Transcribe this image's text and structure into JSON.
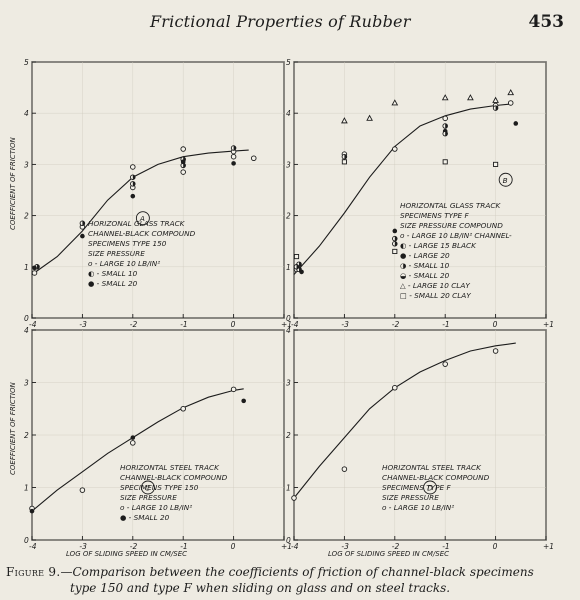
{
  "header": {
    "running_title": "Frictional Properties of Rubber",
    "page_number": "453"
  },
  "y_axis_label": "COEFFICIENT OF FRICTION",
  "x_axis_label": "LOG OF SLIDING SPEED IN CM/SEC",
  "caption": {
    "lead": "Figure 9.",
    "line1": "—Comparison between the coefficients of friction of channel-black specimens",
    "line2": "type 150 and type F when sliding on glass and on steel tracks."
  },
  "chart_data": [
    {
      "type": "scatter",
      "panel": "A",
      "xlim": [
        -4,
        1
      ],
      "ylim": [
        0,
        5
      ],
      "x_ticks": [
        "-4",
        "-3",
        "-2",
        "-1",
        "0",
        "+1"
      ],
      "y_ticks": [
        "0",
        "1",
        "2",
        "3",
        "4",
        "5"
      ],
      "legend": [
        "HORIZONAL GLASS TRACK",
        "CHANNEL-BLACK COMPOUND",
        "SPECIMENS TYPE 150",
        "SIZE      PRESSURE",
        "o - LARGE    10 LB/IN²",
        "◐ - SMALL    10",
        "● - SMALL    20"
      ],
      "series": [
        {
          "name": "LARGE 10",
          "marker": "open",
          "points": [
            [
              -3.95,
              0.88
            ],
            [
              -3.0,
              1.78
            ],
            [
              -2.0,
              2.55
            ],
            [
              -2.0,
              2.95
            ],
            [
              -1.0,
              3.3
            ],
            [
              -1.0,
              2.85
            ],
            [
              0.0,
              3.25
            ],
            [
              0.0,
              3.15
            ],
            [
              0.4,
              3.12
            ]
          ]
        },
        {
          "name": "SMALL 10",
          "marker": "half",
          "points": [
            [
              -3.9,
              1.0
            ],
            [
              -3.0,
              1.85
            ],
            [
              -2.0,
              2.75
            ],
            [
              -2.0,
              2.62
            ],
            [
              -1.0,
              3.1
            ],
            [
              -1.0,
              2.98
            ],
            [
              0.0,
              3.32
            ]
          ]
        },
        {
          "name": "SMALL 20",
          "marker": "filled",
          "points": [
            [
              -3.95,
              0.98
            ],
            [
              -3.0,
              1.6
            ],
            [
              -2.0,
              2.38
            ],
            [
              -1.0,
              3.05
            ],
            [
              0.0,
              3.02
            ]
          ]
        }
      ],
      "curve": [
        [
          -4.0,
          0.85
        ],
        [
          -3.5,
          1.2
        ],
        [
          -3.0,
          1.7
        ],
        [
          -2.5,
          2.3
        ],
        [
          -2.0,
          2.75
        ],
        [
          -1.5,
          3.0
        ],
        [
          -1.0,
          3.15
        ],
        [
          -0.5,
          3.22
        ],
        [
          0.0,
          3.26
        ],
        [
          0.3,
          3.28
        ]
      ]
    },
    {
      "type": "scatter",
      "panel": "B",
      "xlim": [
        -4,
        1
      ],
      "ylim": [
        0,
        5
      ],
      "x_ticks": [
        "-4",
        "-3",
        "-2",
        "-1",
        "0",
        "+1"
      ],
      "y_ticks": [
        "0",
        "1",
        "2",
        "3",
        "4",
        "5"
      ],
      "legend": [
        "HORIZONTAL GLASS TRACK",
        "SPECIMENS TYPE F",
        "SIZE  PRESSURE  COMPOUND",
        "o - LARGE    10 LB/IN²   CHANNEL-",
        "◐ - LARGE    15          BLACK",
        "● - LARGE    20",
        "◑ - SMALL    10",
        "◒ - SMALL    20",
        "△ - LARGE    10          CLAY",
        "□ - SMALL    20          CLAY"
      ],
      "series": [
        {
          "name": "LARGE 10 CHANNEL-BLACK",
          "marker": "open",
          "points": [
            [
              -3.95,
              0.95
            ],
            [
              -3.0,
              3.2
            ],
            [
              -2.0,
              3.3
            ],
            [
              -1.0,
              3.9
            ],
            [
              0.0,
              4.15
            ],
            [
              0.3,
              4.2
            ]
          ]
        },
        {
          "name": "LARGE 15",
          "marker": "half",
          "points": [
            [
              -3.9,
              1.05
            ],
            [
              -3.0,
              3.15
            ],
            [
              -1.0,
              3.75
            ],
            [
              0.0,
              4.1
            ]
          ]
        },
        {
          "name": "LARGE 20",
          "marker": "filled",
          "points": [
            [
              -3.85,
              0.9
            ],
            [
              -3.0,
              3.05
            ],
            [
              -2.0,
              1.7
            ],
            [
              -1.0,
              3.65
            ],
            [
              0.4,
              3.8
            ]
          ]
        },
        {
          "name": "SMALL 10",
          "marker": "half",
          "points": [
            [
              -3.9,
              0.95
            ],
            [
              -2.0,
              1.45
            ],
            [
              -1.0,
              3.6
            ]
          ]
        },
        {
          "name": "SMALL 20",
          "marker": "half",
          "points": [
            [
              -3.95,
              1.0
            ],
            [
              -2.0,
              1.55
            ]
          ]
        },
        {
          "name": "LARGE 10 CLAY",
          "marker": "triangle",
          "points": [
            [
              -3.0,
              3.85
            ],
            [
              -2.5,
              3.9
            ],
            [
              -2.0,
              4.2
            ],
            [
              -1.0,
              4.3
            ],
            [
              -0.5,
              4.3
            ],
            [
              0.0,
              4.25
            ],
            [
              0.3,
              4.4
            ]
          ]
        },
        {
          "name": "SMALL 20 CLAY",
          "marker": "square",
          "points": [
            [
              -3.95,
              1.2
            ],
            [
              -3.0,
              3.05
            ],
            [
              -2.0,
              1.3
            ],
            [
              -1.0,
              3.05
            ],
            [
              0.0,
              3.0
            ]
          ]
        }
      ],
      "curve": [
        [
          -4.0,
          0.85
        ],
        [
          -3.5,
          1.4
        ],
        [
          -3.0,
          2.05
        ],
        [
          -2.5,
          2.75
        ],
        [
          -2.0,
          3.35
        ],
        [
          -1.5,
          3.75
        ],
        [
          -1.0,
          3.95
        ],
        [
          -0.5,
          4.08
        ],
        [
          0.0,
          4.15
        ],
        [
          0.3,
          4.18
        ]
      ]
    },
    {
      "type": "scatter",
      "panel": "C",
      "xlim": [
        -4,
        1
      ],
      "ylim": [
        0,
        4
      ],
      "x_ticks": [
        "-4",
        "-3",
        "-2",
        "-1",
        "0",
        "+1"
      ],
      "y_ticks": [
        "0",
        "1",
        "2",
        "3",
        "4"
      ],
      "legend": [
        "HORIZONTAL STEEL TRACK",
        "CHANNEL-BLACK COMPOUND",
        "SPECIMENS TYPE 150",
        "SIZE      PRESSURE",
        "o - LARGE    10 LB/IN²",
        "● - SMALL    20"
      ],
      "series": [
        {
          "name": "LARGE 10",
          "marker": "open",
          "points": [
            [
              -4.0,
              0.6
            ],
            [
              -3.0,
              0.95
            ],
            [
              -2.0,
              1.85
            ],
            [
              -1.0,
              2.5
            ],
            [
              0.0,
              2.87
            ]
          ]
        },
        {
          "name": "SMALL 20",
          "marker": "filled",
          "points": [
            [
              -4.0,
              0.55
            ],
            [
              -2.0,
              1.95
            ],
            [
              0.2,
              2.65
            ]
          ]
        }
      ],
      "curve": [
        [
          -4.0,
          0.55
        ],
        [
          -3.5,
          0.95
        ],
        [
          -3.0,
          1.3
        ],
        [
          -2.5,
          1.65
        ],
        [
          -2.0,
          1.95
        ],
        [
          -1.5,
          2.25
        ],
        [
          -1.0,
          2.52
        ],
        [
          -0.5,
          2.72
        ],
        [
          0.0,
          2.85
        ],
        [
          0.2,
          2.88
        ]
      ]
    },
    {
      "type": "scatter",
      "panel": "D",
      "xlim": [
        -4,
        1
      ],
      "ylim": [
        0,
        4
      ],
      "x_ticks": [
        "-4",
        "-3",
        "-2",
        "-1",
        "0",
        "+1"
      ],
      "y_ticks": [
        "0",
        "1",
        "2",
        "3",
        "4"
      ],
      "legend": [
        "HORIZONTAL STEEL TRACK",
        "CHANNEL-BLACK COMPOUND",
        "SPECIMENS TYPE F",
        "SIZE      PRESSURE",
        "o - LARGE    10 LB/IN²"
      ],
      "series": [
        {
          "name": "LARGE 10",
          "marker": "open",
          "points": [
            [
              -4.0,
              0.8
            ],
            [
              -3.0,
              1.35
            ],
            [
              -2.0,
              2.9
            ],
            [
              -1.0,
              3.35
            ],
            [
              0.0,
              3.6
            ]
          ]
        }
      ],
      "curve": [
        [
          -4.0,
          0.8
        ],
        [
          -3.5,
          1.4
        ],
        [
          -3.0,
          1.95
        ],
        [
          -2.5,
          2.5
        ],
        [
          -2.0,
          2.9
        ],
        [
          -1.5,
          3.2
        ],
        [
          -1.0,
          3.42
        ],
        [
          -0.5,
          3.6
        ],
        [
          0.0,
          3.7
        ],
        [
          0.4,
          3.75
        ]
      ]
    }
  ]
}
